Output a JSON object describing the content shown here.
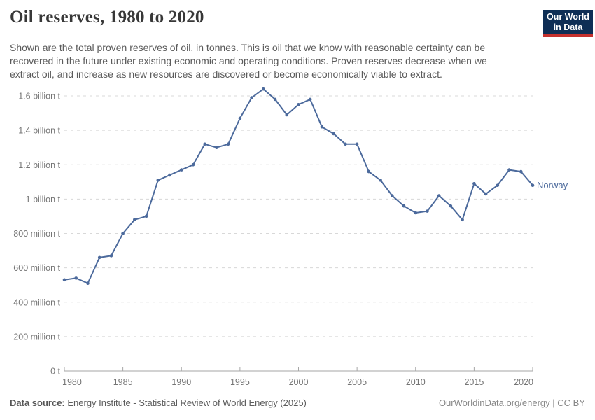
{
  "header": {
    "title": "Oil reserves, 1980 to 2020",
    "subtitle_lines": [
      "Shown are the total proven reserves of oil, in tonnes. This is oil that we know with reasonable certainty can be",
      "recovered in the future under existing economic and operating conditions. Proven reserves decrease when we",
      "extract oil, and increase as new resources are discovered or become economically viable to extract."
    ],
    "logo": {
      "line1": "Our World",
      "line2": "in Data"
    }
  },
  "colors": {
    "line": "#4C6A9C",
    "grid": "#d8d8d8",
    "axis": "#a6a6a6",
    "tick_text": "#757575",
    "logo_bg": "#0E2E55",
    "logo_accent": "#C5312E"
  },
  "chart_data": {
    "type": "line",
    "title": "Oil reserves, 1980 to 2020",
    "entity": "Norway",
    "unit": "billion tonnes",
    "xlabel": "",
    "ylabel": "",
    "xlim": [
      1980,
      2020
    ],
    "ylim": [
      0,
      1.66
    ],
    "grid": "horizontal-dashed",
    "legend_position": "end-of-line-label",
    "end_label": "Norway",
    "x": [
      1980,
      1981,
      1982,
      1983,
      1984,
      1985,
      1986,
      1987,
      1988,
      1989,
      1990,
      1991,
      1992,
      1993,
      1994,
      1995,
      1996,
      1997,
      1998,
      1999,
      2000,
      2001,
      2002,
      2003,
      2004,
      2005,
      2006,
      2007,
      2008,
      2009,
      2010,
      2011,
      2012,
      2013,
      2014,
      2015,
      2016,
      2017,
      2018,
      2019,
      2020
    ],
    "series": [
      {
        "name": "Norway",
        "values_billion_t": [
          0.53,
          0.54,
          0.51,
          0.66,
          0.67,
          0.8,
          0.88,
          0.9,
          1.11,
          1.14,
          1.17,
          1.2,
          1.32,
          1.3,
          1.32,
          1.47,
          1.59,
          1.64,
          1.58,
          1.49,
          1.55,
          1.58,
          1.42,
          1.38,
          1.32,
          1.32,
          1.16,
          1.11,
          1.02,
          0.96,
          0.92,
          0.93,
          1.02,
          0.96,
          0.88,
          1.09,
          1.03,
          1.08,
          1.17,
          1.16,
          1.08
        ]
      }
    ],
    "x_tick_years": [
      1980,
      1985,
      1990,
      1995,
      2000,
      2005,
      2010,
      2015,
      2020
    ],
    "y_ticks": [
      {
        "value": 0.0,
        "label": "0 t"
      },
      {
        "value": 0.2,
        "label": "200 million t"
      },
      {
        "value": 0.4,
        "label": "400 million t"
      },
      {
        "value": 0.6,
        "label": "600 million t"
      },
      {
        "value": 0.8,
        "label": "800 million t"
      },
      {
        "value": 1.0,
        "label": "1 billion t"
      },
      {
        "value": 1.2,
        "label": "1.2 billion t"
      },
      {
        "value": 1.4,
        "label": "1.4 billion t"
      },
      {
        "value": 1.6,
        "label": "1.6 billion t"
      }
    ]
  },
  "footer": {
    "source_label": "Data source:",
    "source_text": " Energy Institute - Statistical Review of World Energy (2025)",
    "credit": "OurWorldinData.org/energy | CC BY"
  }
}
